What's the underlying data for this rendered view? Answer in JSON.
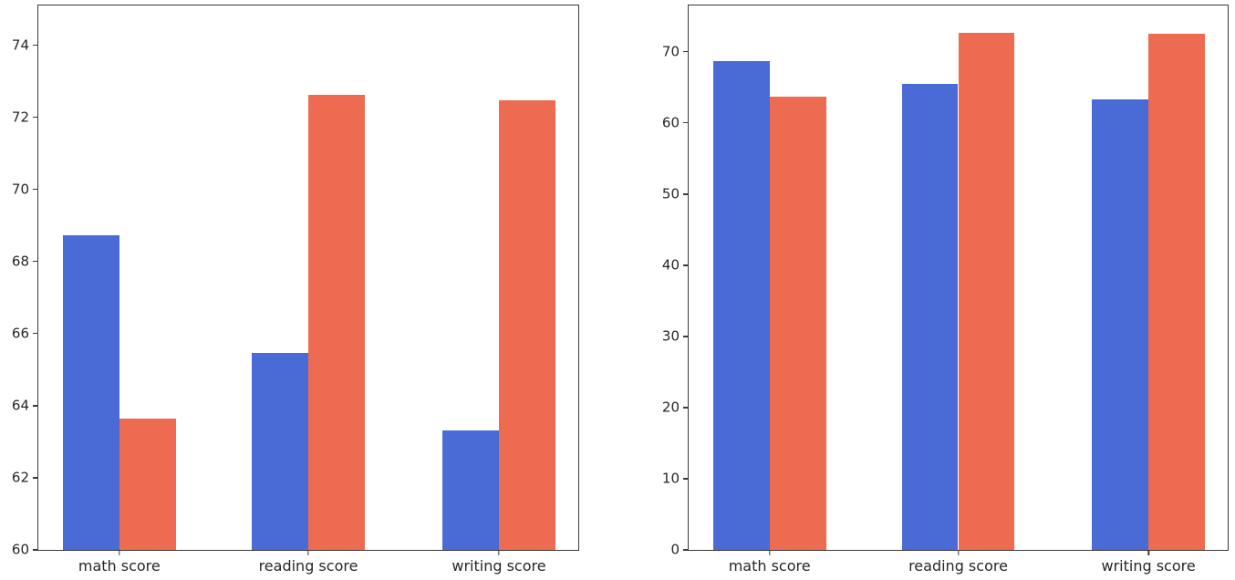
{
  "figure": {
    "background": "#ffffff",
    "axis_color": "#3a3a3a",
    "tick_label_color": "#262626"
  },
  "chart_data": [
    {
      "type": "bar",
      "title": "",
      "xlabel": "",
      "ylabel": "",
      "categories": [
        "math score",
        "reading score",
        "writing score"
      ],
      "series": [
        {
          "name": "blue",
          "color": "#4A6BD5",
          "values": [
            68.73,
            65.47,
            63.31
          ]
        },
        {
          "name": "red",
          "color": "#EC6B51",
          "values": [
            63.63,
            72.61,
            72.47
          ]
        }
      ],
      "ylim": [
        60,
        75.1
      ],
      "yticks": [
        60,
        62,
        64,
        66,
        68,
        70,
        72,
        74
      ],
      "grid": false,
      "legend": "none"
    },
    {
      "type": "bar",
      "title": "",
      "xlabel": "",
      "ylabel": "",
      "categories": [
        "math score",
        "reading score",
        "writing score"
      ],
      "series": [
        {
          "name": "blue",
          "color": "#4A6BD5",
          "values": [
            68.73,
            65.47,
            63.31
          ]
        },
        {
          "name": "red",
          "color": "#EC6B51",
          "values": [
            63.63,
            72.61,
            72.47
          ]
        }
      ],
      "ylim": [
        0,
        76.5
      ],
      "yticks": [
        0,
        10,
        20,
        30,
        40,
        50,
        60,
        70
      ],
      "grid": false,
      "legend": "none"
    }
  ]
}
